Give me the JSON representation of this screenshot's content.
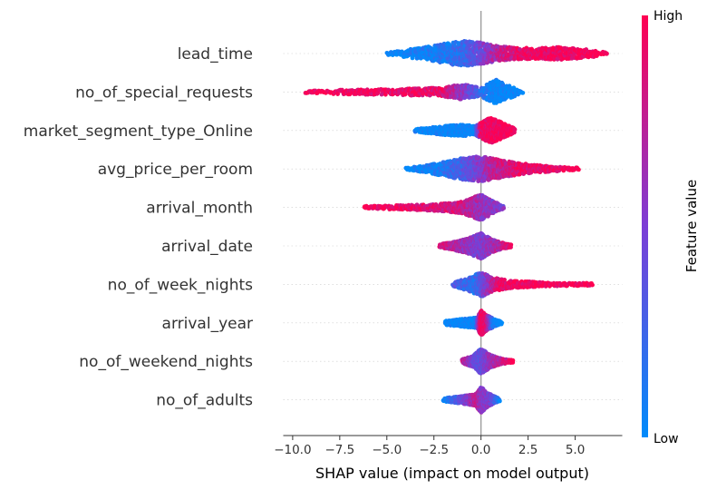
{
  "chart_data": {
    "type": "scatter",
    "subtype": "shap-beeswarm",
    "xlabel": "SHAP value (impact on model output)",
    "xlim": [
      -10.5,
      7.5
    ],
    "xticks": [
      -10.0,
      -7.5,
      -5.0,
      -2.5,
      0.0,
      2.5,
      5.0
    ],
    "xtick_labels": [
      "−10.0",
      "−7.5",
      "−5.0",
      "−2.5",
      "0.0",
      "2.5",
      "5.0"
    ],
    "grid": false,
    "colorbar": {
      "title": "Feature value",
      "high_label": "High",
      "low_label": "Low",
      "low_color": "#008bfb",
      "mid_color": "#7c3ed6",
      "high_color": "#ff0052",
      "placement": "right"
    },
    "features": [
      {
        "name": "lead_time",
        "min": -5.0,
        "max": 6.7,
        "density": [
          [
            -5.0,
            0.12
          ],
          [
            -4.0,
            0.28
          ],
          [
            -3.0,
            0.5
          ],
          [
            -2.0,
            0.75
          ],
          [
            -1.0,
            1.0
          ],
          [
            0.0,
            0.85
          ],
          [
            1.0,
            0.55
          ],
          [
            2.0,
            0.45
          ],
          [
            3.0,
            0.42
          ],
          [
            4.0,
            0.5
          ],
          [
            5.0,
            0.42
          ],
          [
            6.0,
            0.25
          ],
          [
            6.7,
            0.08
          ]
        ],
        "color_map": [
          [
            -5.0,
            0.0
          ],
          [
            -3.0,
            0.05
          ],
          [
            -1.0,
            0.2
          ],
          [
            0.0,
            0.45
          ],
          [
            1.0,
            0.75
          ],
          [
            2.5,
            0.95
          ],
          [
            6.7,
            1.0
          ]
        ]
      },
      {
        "name": "no_of_special_requests",
        "min": -9.3,
        "max": 2.2,
        "density": [
          [
            -9.3,
            0.05
          ],
          [
            -8.0,
            0.15
          ],
          [
            -6.0,
            0.2
          ],
          [
            -4.0,
            0.25
          ],
          [
            -2.0,
            0.35
          ],
          [
            -1.0,
            0.6
          ],
          [
            0.0,
            0.35
          ],
          [
            0.3,
            0.6
          ],
          [
            0.8,
            1.0
          ],
          [
            1.3,
            0.6
          ],
          [
            2.2,
            0.1
          ]
        ],
        "color_map": [
          [
            -9.3,
            1.0
          ],
          [
            -2.0,
            0.9
          ],
          [
            -0.8,
            0.5
          ],
          [
            0.0,
            0.2
          ],
          [
            0.5,
            0.0
          ],
          [
            2.2,
            0.0
          ]
        ]
      },
      {
        "name": "market_segment_type_Online",
        "min": -3.5,
        "max": 1.8,
        "density": [
          [
            -3.5,
            0.1
          ],
          [
            -2.0,
            0.35
          ],
          [
            -1.0,
            0.45
          ],
          [
            -0.3,
            0.35
          ],
          [
            0.2,
            0.8
          ],
          [
            0.5,
            1.0
          ],
          [
            1.0,
            0.7
          ],
          [
            1.8,
            0.15
          ]
        ],
        "color_map": [
          [
            -3.5,
            0.0
          ],
          [
            -0.3,
            0.0
          ],
          [
            0.0,
            0.95
          ],
          [
            1.8,
            1.0
          ]
        ]
      },
      {
        "name": "avg_price_per_room",
        "min": -4.0,
        "max": 5.2,
        "density": [
          [
            -4.0,
            0.08
          ],
          [
            -3.0,
            0.25
          ],
          [
            -2.0,
            0.55
          ],
          [
            -1.0,
            0.85
          ],
          [
            0.0,
            1.0
          ],
          [
            1.0,
            0.7
          ],
          [
            2.0,
            0.45
          ],
          [
            3.0,
            0.3
          ],
          [
            4.0,
            0.18
          ],
          [
            5.2,
            0.06
          ]
        ],
        "color_map": [
          [
            -4.0,
            0.0
          ],
          [
            -2.0,
            0.1
          ],
          [
            -0.5,
            0.4
          ],
          [
            0.5,
            0.7
          ],
          [
            2.0,
            0.9
          ],
          [
            5.2,
            1.0
          ]
        ]
      },
      {
        "name": "arrival_month",
        "min": -6.2,
        "max": 1.2,
        "density": [
          [
            -6.2,
            0.06
          ],
          [
            -5.0,
            0.15
          ],
          [
            -4.0,
            0.18
          ],
          [
            -3.0,
            0.22
          ],
          [
            -2.0,
            0.3
          ],
          [
            -1.0,
            0.45
          ],
          [
            -0.4,
            0.8
          ],
          [
            0.0,
            1.0
          ],
          [
            0.5,
            0.6
          ],
          [
            1.2,
            0.1
          ]
        ],
        "color_map": [
          [
            -6.2,
            1.0
          ],
          [
            -3.0,
            0.9
          ],
          [
            -1.0,
            0.8
          ],
          [
            0.0,
            0.6
          ],
          [
            1.2,
            0.5
          ]
        ]
      },
      {
        "name": "arrival_date",
        "min": -2.2,
        "max": 1.6,
        "density": [
          [
            -2.2,
            0.12
          ],
          [
            -1.5,
            0.3
          ],
          [
            -0.8,
            0.55
          ],
          [
            0.0,
            1.0
          ],
          [
            0.6,
            0.5
          ],
          [
            1.0,
            0.3
          ],
          [
            1.6,
            0.08
          ]
        ],
        "color_map": [
          [
            -2.2,
            0.9
          ],
          [
            -0.8,
            0.6
          ],
          [
            0.0,
            0.5
          ],
          [
            1.0,
            0.7
          ],
          [
            1.6,
            0.9
          ]
        ]
      },
      {
        "name": "no_of_week_nights",
        "min": -1.5,
        "max": 5.9,
        "density": [
          [
            -1.5,
            0.12
          ],
          [
            -0.5,
            0.6
          ],
          [
            0.0,
            1.0
          ],
          [
            0.6,
            0.55
          ],
          [
            1.5,
            0.3
          ],
          [
            2.5,
            0.22
          ],
          [
            3.5,
            0.15
          ],
          [
            4.5,
            0.12
          ],
          [
            5.9,
            0.05
          ]
        ],
        "color_map": [
          [
            -1.5,
            0.3
          ],
          [
            -0.3,
            0.2
          ],
          [
            0.2,
            0.5
          ],
          [
            1.0,
            0.95
          ],
          [
            5.9,
            1.0
          ]
        ]
      },
      {
        "name": "arrival_year",
        "min": -1.9,
        "max": 1.1,
        "density": [
          [
            -1.9,
            0.15
          ],
          [
            -1.0,
            0.3
          ],
          [
            -0.2,
            0.4
          ],
          [
            0.0,
            1.0
          ],
          [
            0.3,
            0.6
          ],
          [
            0.7,
            0.3
          ],
          [
            1.1,
            0.1
          ]
        ],
        "color_map": [
          [
            -1.9,
            0.0
          ],
          [
            -0.3,
            0.0
          ],
          [
            0.0,
            1.0
          ],
          [
            0.3,
            0.9
          ],
          [
            0.7,
            0.05
          ],
          [
            1.1,
            0.0
          ]
        ]
      },
      {
        "name": "no_of_weekend_nights",
        "min": -1.0,
        "max": 1.7,
        "density": [
          [
            -1.0,
            0.15
          ],
          [
            -0.4,
            0.45
          ],
          [
            0.0,
            1.0
          ],
          [
            0.5,
            0.5
          ],
          [
            1.0,
            0.25
          ],
          [
            1.7,
            0.06
          ]
        ],
        "color_map": [
          [
            -1.0,
            0.8
          ],
          [
            -0.3,
            0.4
          ],
          [
            0.0,
            0.4
          ],
          [
            0.5,
            0.6
          ],
          [
            1.7,
            0.95
          ]
        ]
      },
      {
        "name": "no_of_adults",
        "min": -2.0,
        "max": 1.0,
        "density": [
          [
            -2.0,
            0.12
          ],
          [
            -1.0,
            0.3
          ],
          [
            -0.3,
            0.45
          ],
          [
            0.0,
            1.0
          ],
          [
            0.4,
            0.5
          ],
          [
            1.0,
            0.08
          ]
        ],
        "color_map": [
          [
            -2.0,
            0.0
          ],
          [
            -0.8,
            0.5
          ],
          [
            -0.2,
            0.8
          ],
          [
            0.0,
            0.55
          ],
          [
            0.5,
            0.5
          ],
          [
            1.0,
            0.1
          ]
        ]
      }
    ]
  }
}
